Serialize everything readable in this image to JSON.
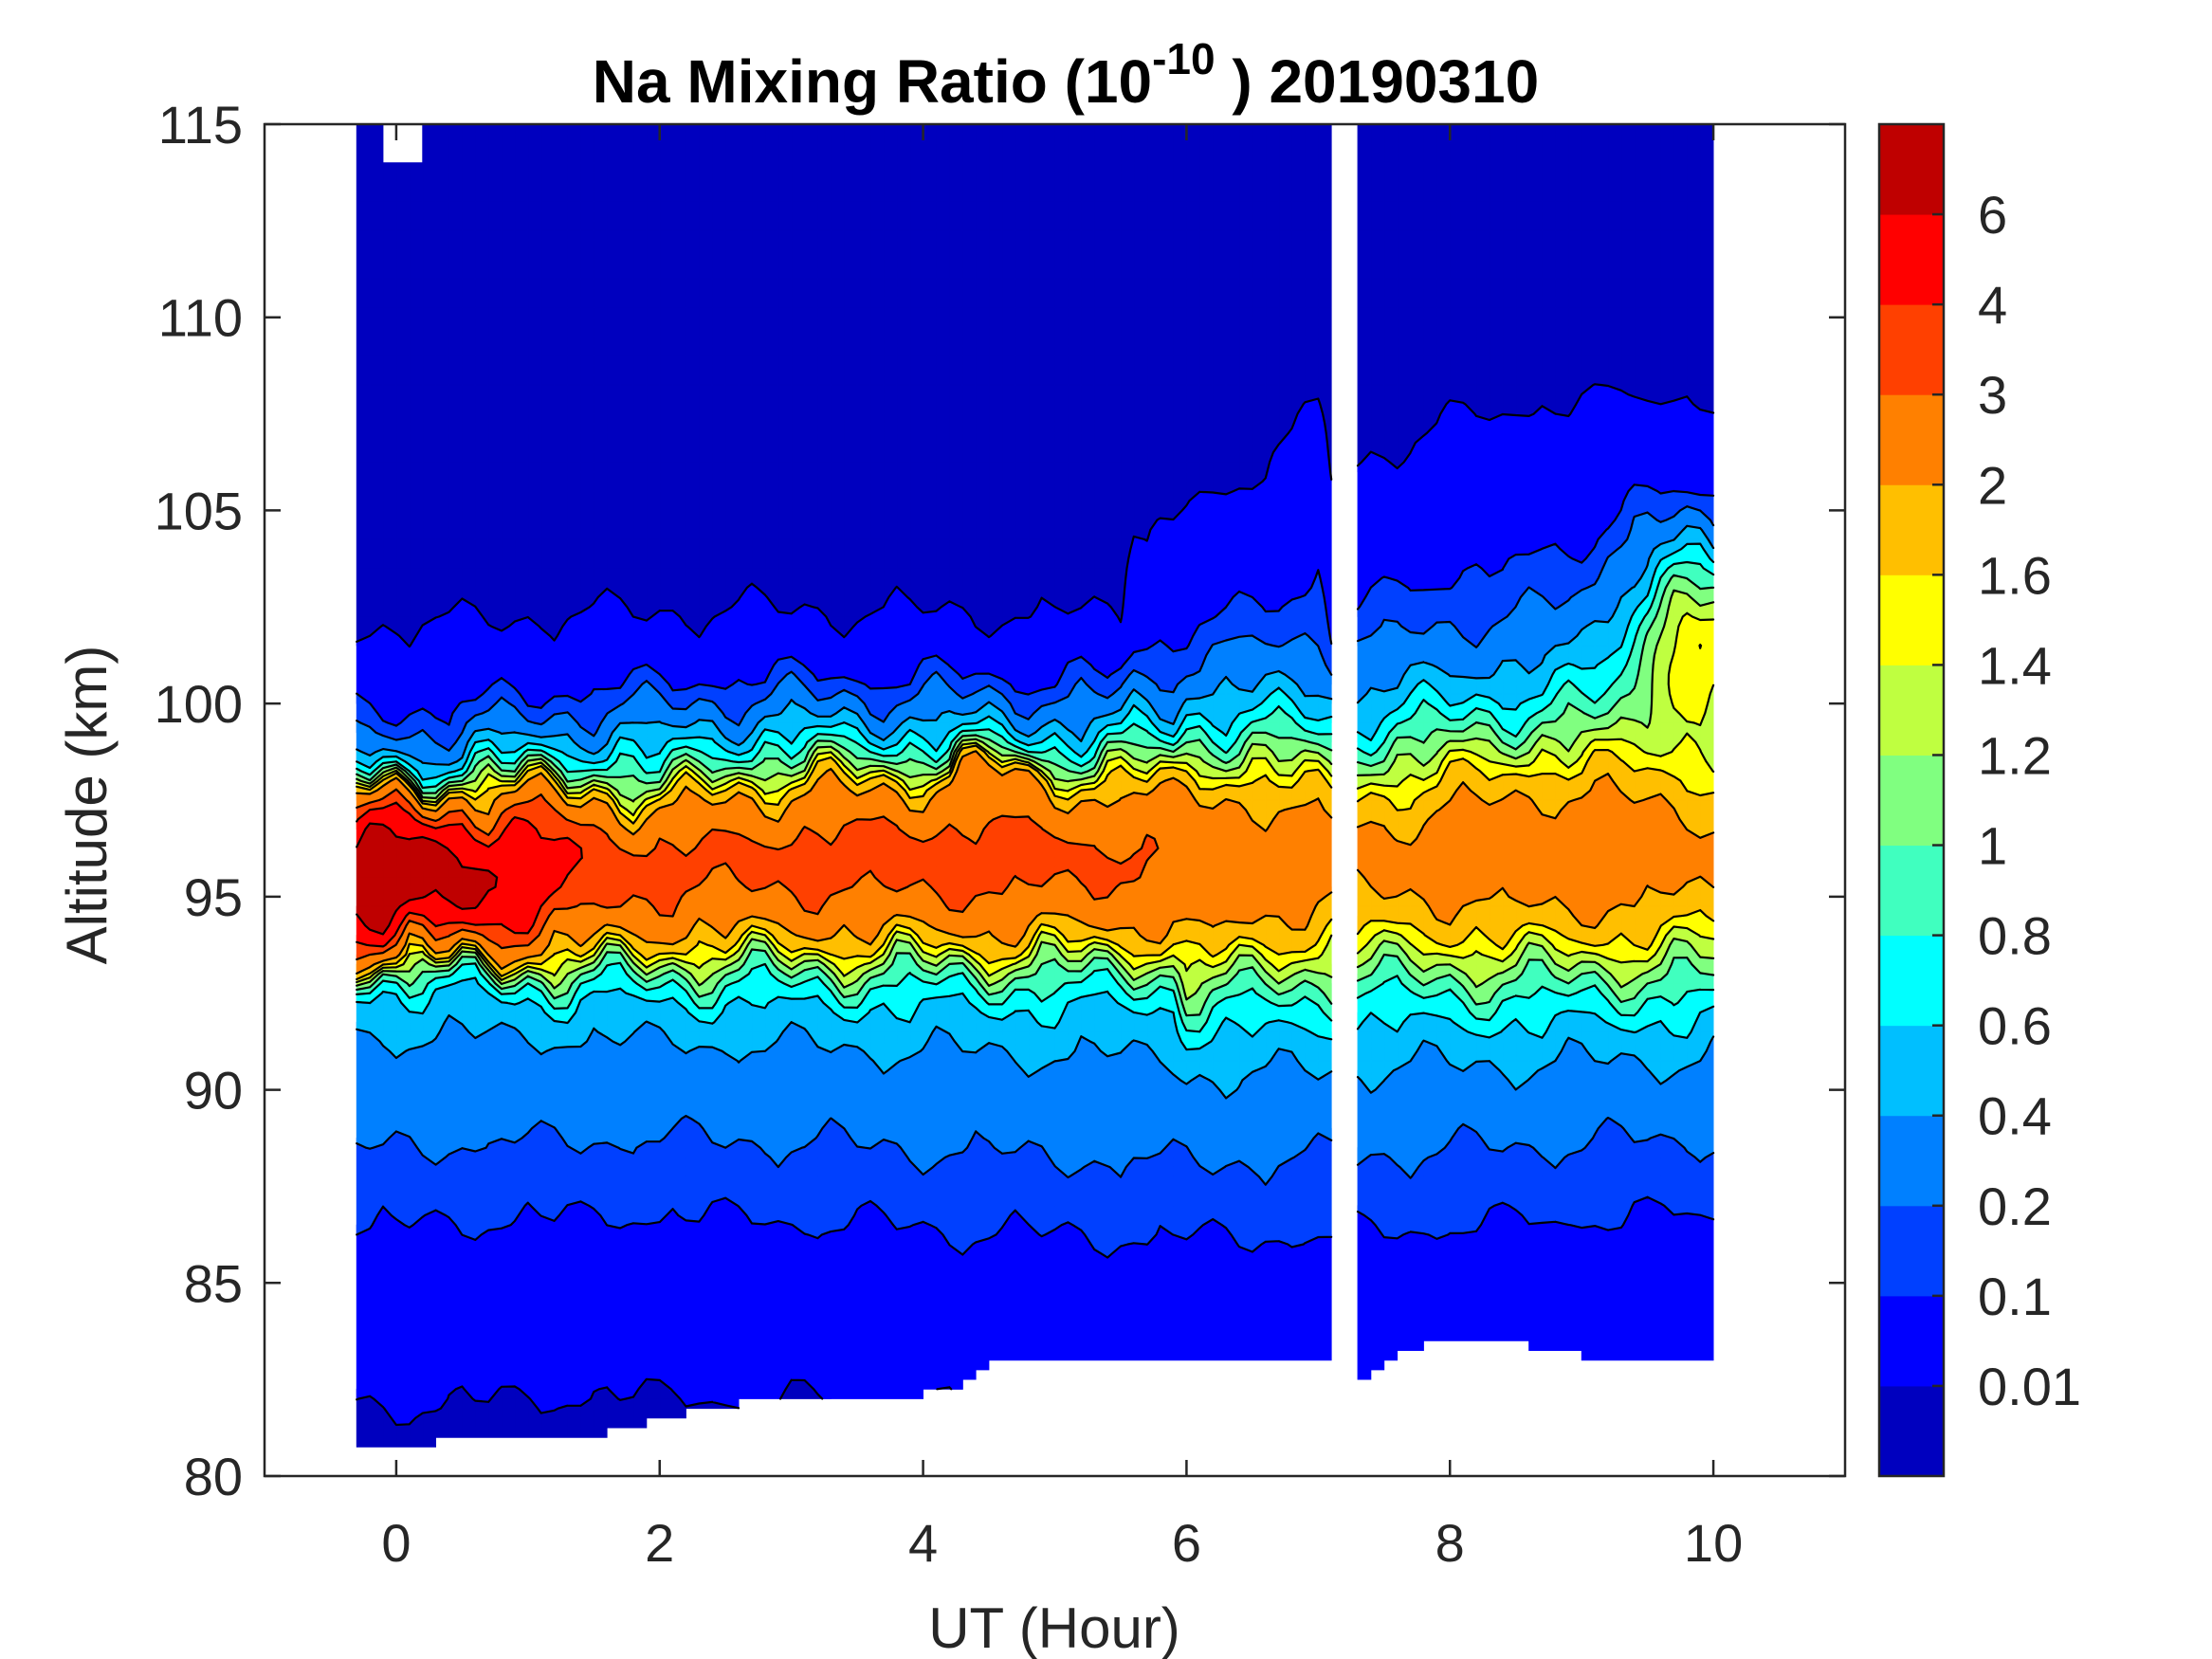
{
  "chart_data": {
    "type": "heatmap",
    "subtype": "filled-contour",
    "title": {
      "main": "Na Mixing Ratio (10",
      "superscript": "-10",
      "tail": " ) 20190310"
    },
    "xlabel": "UT (Hour)",
    "ylabel": "Altitude (km)",
    "xlim": [
      -1,
      11
    ],
    "ylim": [
      80,
      115
    ],
    "xticks": [
      0,
      2,
      4,
      6,
      8,
      10
    ],
    "xtick_labels": [
      "0",
      "2",
      "4",
      "6",
      "8",
      "10"
    ],
    "yticks": [
      80,
      85,
      90,
      95,
      100,
      105,
      110,
      115
    ],
    "ytick_labels": [
      "80",
      "85",
      "90",
      "95",
      "100",
      "105",
      "110",
      "115"
    ],
    "grid": false,
    "colorbar": {
      "location": "right",
      "levels": [
        0,
        0.01,
        0.1,
        0.2,
        0.4,
        0.6,
        0.8,
        1,
        1.2,
        1.4,
        1.6,
        2,
        3,
        4,
        6,
        8
      ],
      "tick_values": [
        0.01,
        0.1,
        0.2,
        0.4,
        0.6,
        0.8,
        1,
        1.2,
        1.4,
        1.6,
        2,
        3,
        4,
        6
      ],
      "tick_labels": [
        "0.01",
        "0.1",
        "0.2",
        "0.4",
        "0.6",
        "0.8",
        "1",
        "1.2",
        "1.4",
        "1.6",
        "2",
        "3",
        "4",
        "6"
      ],
      "colors": [
        "#0000BF",
        "#0000FF",
        "#0040FF",
        "#0080FF",
        "#00BFFF",
        "#00FFFF",
        "#40FFBF",
        "#80FF80",
        "#BFFF40",
        "#FFFF00",
        "#FFBF00",
        "#FF8000",
        "#FF4000",
        "#FF0000",
        "#BF0000"
      ]
    },
    "data_coverage": {
      "segments_ut_hours": [
        [
          -0.3,
          7.1
        ],
        [
          7.3,
          10.0
        ]
      ],
      "lower_boundary_km": [
        [
          -0.3,
          80.5
        ],
        [
          0.0,
          80.6
        ],
        [
          0.5,
          80.8
        ],
        [
          1.0,
          80.8
        ],
        [
          1.5,
          80.9
        ],
        [
          2.0,
          81.3
        ],
        [
          2.5,
          81.7
        ],
        [
          3.0,
          81.9
        ],
        [
          4.0,
          82.0
        ],
        [
          4.3,
          82.1
        ],
        [
          4.6,
          82.8
        ],
        [
          5.5,
          82.9
        ],
        [
          6.5,
          82.8
        ],
        [
          7.1,
          83.0
        ],
        [
          7.3,
          82.0
        ],
        [
          7.6,
          83.0
        ],
        [
          8.0,
          83.4
        ],
        [
          8.5,
          83.3
        ],
        [
          9.0,
          83.0
        ],
        [
          10.0,
          83.0
        ]
      ]
    },
    "layer_components": [
      {
        "name": "main-layer",
        "peak_hour": -0.2,
        "peak_km": 95.4,
        "peak_value": 8.0
      },
      {
        "name": "central-band",
        "hour_range": [
          1.5,
          6.5
        ],
        "km_range": [
          94,
          98
        ],
        "value": 2.5
      },
      {
        "name": "secondary-max",
        "hour": 4.5,
        "km": 97.8,
        "value": 3.3
      },
      {
        "name": "late-upper-max",
        "hour": 9.9,
        "km": 101.5,
        "value": 2.2
      },
      {
        "name": "late-layer",
        "hour_range": [
          7.5,
          10
        ],
        "km_range": [
          93,
          100
        ],
        "value": 1.3
      }
    ]
  }
}
